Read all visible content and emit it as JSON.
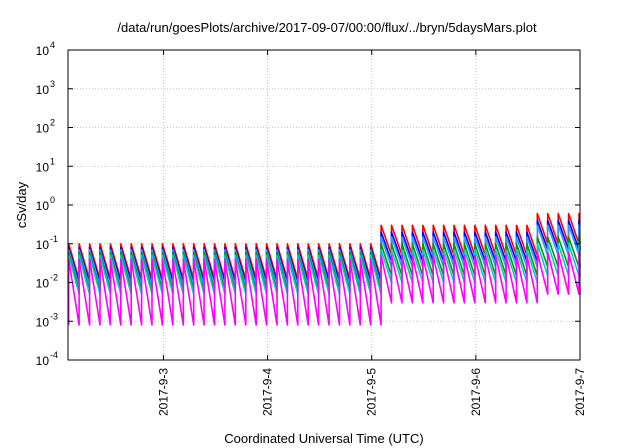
{
  "chart_data": {
    "type": "line",
    "title": "/data/run/goesPlots/archive/2017-09-07/00:00/flux/../bryn/5daysMars.plot",
    "xlabel": "Coordinated Universal Time (UTC)",
    "ylabel": "cSv/day",
    "y_scale": "log",
    "ylim": [
      0.0001,
      10000
    ],
    "y_ticks": [
      {
        "base": "10",
        "exp": "-4"
      },
      {
        "base": "10",
        "exp": "-3"
      },
      {
        "base": "10",
        "exp": "-2"
      },
      {
        "base": "10",
        "exp": "-1"
      },
      {
        "base": "10",
        "exp": "0"
      },
      {
        "base": "10",
        "exp": "1"
      },
      {
        "base": "10",
        "exp": "2"
      },
      {
        "base": "10",
        "exp": "3"
      },
      {
        "base": "10",
        "exp": "4"
      }
    ],
    "xlim": [
      "2017-09-02T02:00",
      "2017-09-07T00:00"
    ],
    "x_ticks": [
      "2017-9-3",
      "2017-9-4",
      "2017-9-5",
      "2017-9-6",
      "2017-9-7"
    ],
    "grid": true,
    "pattern": "sawtooth: sharp rise at each peak, then decay over about 2.4 h until the next peak",
    "peak_interval_hours": 2.4,
    "series": [
      {
        "color": "#ff0000",
        "peak_before_09_05": 0.1,
        "trough_before_09_05": 0.012,
        "peak_09_05_to_09_06_12": 0.3,
        "trough_09_05_to_09_06_12": 0.05,
        "peak_after_09_06_12": 0.6,
        "trough_after_09_06_12": 0.1
      },
      {
        "color": "#0000ff",
        "peak_before_09_05": 0.08,
        "trough_before_09_05": 0.01,
        "peak_09_05_to_09_06_12": 0.2,
        "trough_09_05_to_09_06_12": 0.035,
        "peak_after_09_06_12": 0.4,
        "trough_after_09_06_12": 0.07
      },
      {
        "color": "#3399ff",
        "peak_before_09_05": 0.07,
        "trough_before_09_05": 0.008,
        "peak_09_05_to_09_06_12": 0.15,
        "trough_09_05_to_09_06_12": 0.025,
        "peak_after_09_06_12": 0.3,
        "trough_after_09_06_12": 0.05
      },
      {
        "color": "#009900",
        "peak_before_09_05": 0.06,
        "trough_before_09_05": 0.006,
        "peak_09_05_to_09_06_12": 0.1,
        "trough_09_05_to_09_06_12": 0.015,
        "peak_after_09_06_12": 0.15,
        "trough_after_09_06_12": 0.025
      },
      {
        "color": "#00cccc",
        "peak_before_09_05": 0.05,
        "trough_before_09_05": 0.005,
        "peak_09_05_to_09_06_12": 0.07,
        "trough_09_05_to_09_06_12": 0.01,
        "peak_after_09_06_12": 0.1,
        "trough_after_09_06_12": 0.015
      },
      {
        "color": "#ff00ff",
        "peak_before_09_05": 0.04,
        "trough_before_09_05": 0.0008,
        "peak_09_05_to_09_06_12": 0.05,
        "trough_09_05_to_09_06_12": 0.003,
        "peak_after_09_06_12": 0.06,
        "trough_after_09_06_12": 0.005
      }
    ]
  }
}
